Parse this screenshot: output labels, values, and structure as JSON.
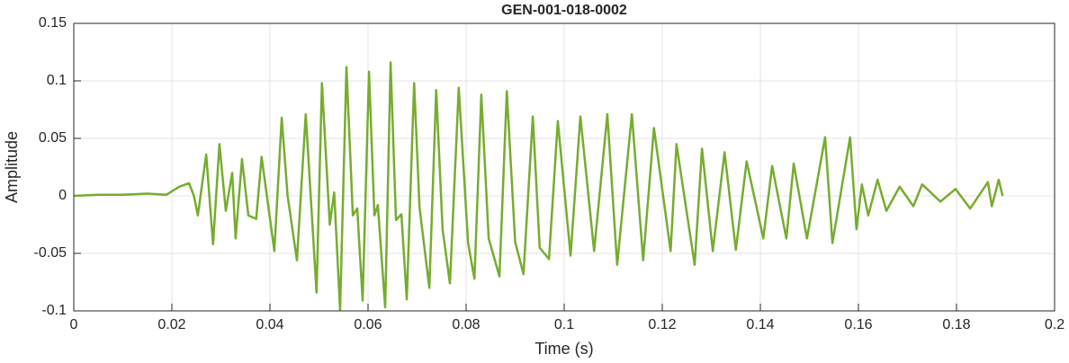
{
  "chart_data": {
    "type": "line",
    "title": "GEN-001-018-0002",
    "xlabel": "Time (s)",
    "ylabel": "Amplitude",
    "x": [
      0,
      0.005,
      0.01,
      0.015,
      0.0189,
      0.0215,
      0.0235,
      0.0245,
      0.0253,
      0.027,
      0.0284,
      0.0297,
      0.031,
      0.0323,
      0.033,
      0.0343,
      0.0356,
      0.0372,
      0.0383,
      0.0409,
      0.0424,
      0.0436,
      0.0455,
      0.0473,
      0.0495,
      0.0506,
      0.0522,
      0.0531,
      0.0543,
      0.0556,
      0.0569,
      0.0578,
      0.0589,
      0.0602,
      0.0613,
      0.062,
      0.0635,
      0.0646,
      0.0657,
      0.0668,
      0.0679,
      0.0694,
      0.0705,
      0.0725,
      0.0739,
      0.0752,
      0.0767,
      0.0785,
      0.0804,
      0.0817,
      0.0831,
      0.0846,
      0.0868,
      0.0883,
      0.09,
      0.0917,
      0.0936,
      0.095,
      0.0969,
      0.0987,
      0.1013,
      0.1033,
      0.1061,
      0.1088,
      0.1108,
      0.1138,
      0.1161,
      0.1183,
      0.1217,
      0.1229,
      0.1266,
      0.1281,
      0.1303,
      0.1327,
      0.135,
      0.1372,
      0.1406,
      0.1424,
      0.1453,
      0.1468,
      0.1495,
      0.1532,
      0.1547,
      0.1583,
      0.1596,
      0.1607,
      0.162,
      0.1639,
      0.1657,
      0.1684,
      0.1712,
      0.173,
      0.1767,
      0.1798,
      0.1828,
      0.1864,
      0.1872,
      0.1886,
      0.1894
    ],
    "series": [
      {
        "name": "Amplitude",
        "color": "#77ac30",
        "values": [
          0,
          0.001,
          0.001,
          0.002,
          0.001,
          0.008,
          0.011,
          0,
          -0.017,
          0.036,
          -0.042,
          0.045,
          -0.013,
          0.02,
          -0.037,
          0.032,
          -0.017,
          -0.02,
          0.034,
          -0.048,
          0.068,
          0,
          -0.056,
          0.071,
          -0.084,
          0.098,
          -0.025,
          0.003,
          -0.099,
          0.112,
          -0.017,
          -0.011,
          -0.091,
          0.108,
          -0.017,
          -0.008,
          -0.097,
          0.116,
          -0.021,
          -0.016,
          -0.09,
          0.098,
          -0.01,
          -0.08,
          0.092,
          -0.029,
          -0.076,
          0.094,
          -0.041,
          -0.072,
          0.088,
          -0.037,
          -0.07,
          0.091,
          -0.04,
          -0.068,
          0.069,
          -0.045,
          -0.055,
          0.065,
          -0.052,
          0.069,
          -0.048,
          0.071,
          -0.06,
          0.071,
          -0.056,
          0.059,
          -0.048,
          0.045,
          -0.06,
          0.041,
          -0.048,
          0.038,
          -0.047,
          0.03,
          -0.037,
          0.026,
          -0.037,
          0.028,
          -0.037,
          0.051,
          -0.041,
          0.051,
          -0.029,
          0.01,
          -0.017,
          0.014,
          -0.013,
          0.008,
          -0.009,
          0.01,
          -0.005,
          0.006,
          -0.011,
          0.012,
          -0.009,
          0.014,
          0
        ]
      }
    ],
    "xlim": [
      0,
      0.2
    ],
    "xticks": [
      0,
      0.02,
      0.04,
      0.06,
      0.08,
      0.1,
      0.12,
      0.14,
      0.16,
      0.18,
      0.2
    ],
    "ylim": [
      -0.1,
      0.15
    ],
    "yticks": [
      -0.1,
      -0.05,
      0,
      0.05,
      0.1,
      0.15
    ],
    "grid": true
  }
}
